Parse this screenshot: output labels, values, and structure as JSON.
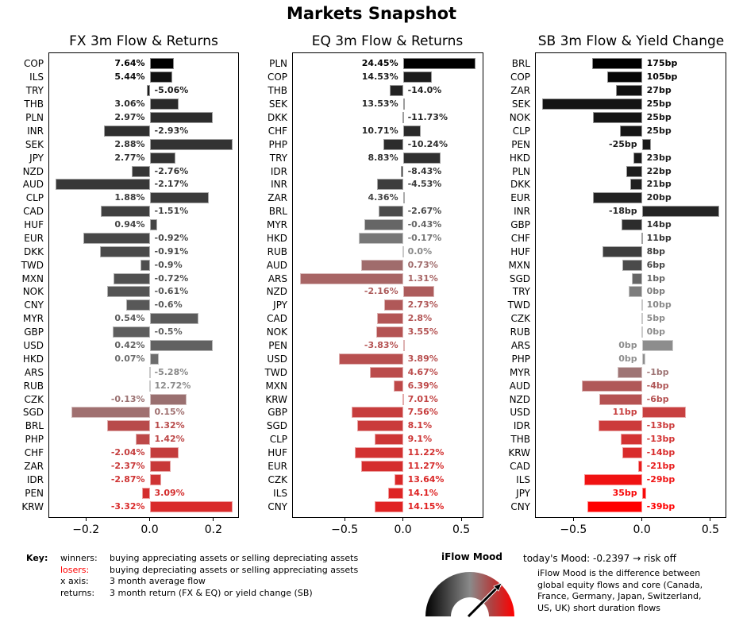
{
  "title": "Markets Snapshot",
  "chart_data": [
    {
      "type": "bar",
      "orientation": "horizontal",
      "title": "FX 3m Flow & Returns",
      "xlabel": "3 month average flow",
      "xlim": [
        -0.3175,
        0.28
      ],
      "xticks": [
        -0.2,
        0.0,
        0.2
      ],
      "xtick_labels": [
        "−0.2",
        "0.0",
        "0.2"
      ],
      "categories": [
        "COP",
        "ILS",
        "TRY",
        "THB",
        "PLN",
        "INR",
        "SEK",
        "JPY",
        "NZD",
        "AUD",
        "CLP",
        "CAD",
        "HUF",
        "EUR",
        "DKK",
        "TWD",
        "MXN",
        "NOK",
        "CNY",
        "MYR",
        "GBP",
        "USD",
        "HKD",
        "ARS",
        "RUB",
        "CZK",
        "SGD",
        "BRL",
        "PHP",
        "CHF",
        "ZAR",
        "IDR",
        "PEN",
        "KRW"
      ],
      "values": [
        0.075,
        0.07,
        -0.01,
        0.09,
        0.198,
        -0.143,
        0.26,
        0.08,
        -0.055,
        -0.295,
        0.185,
        -0.153,
        0.023,
        -0.208,
        -0.155,
        -0.028,
        -0.113,
        -0.133,
        -0.073,
        0.153,
        -0.115,
        0.198,
        0.028,
        -0.002,
        -0.002,
        0.115,
        -0.245,
        -0.133,
        -0.043,
        0.09,
        0.065,
        0.035,
        -0.023,
        0.26
      ],
      "labels": [
        "7.64%",
        "5.44%",
        "-5.06%",
        "3.06%",
        "2.97%",
        "-2.93%",
        "2.88%",
        "2.77%",
        "-2.76%",
        "-2.17%",
        "1.88%",
        "-1.51%",
        "0.94%",
        "-0.92%",
        "-0.91%",
        "-0.9%",
        "-0.72%",
        "-0.61%",
        "-0.6%",
        "0.54%",
        "-0.5%",
        "0.42%",
        "0.07%",
        "-5.28%",
        "12.72%",
        "-0.13%",
        "0.15%",
        "1.32%",
        "1.42%",
        "-2.04%",
        "-2.37%",
        "-2.87%",
        "3.09%",
        "-3.32%"
      ],
      "colors": [
        "#000000",
        "#111111",
        "#1a1a1a",
        "#2a2a2a",
        "#2d2d2d",
        "#303030",
        "#333333",
        "#333333",
        "#353535",
        "#383838",
        "#3b3b3b",
        "#404040",
        "#444444",
        "#474747",
        "#4a4a4a",
        "#4d4d4d",
        "#505050",
        "#555555",
        "#585858",
        "#5b5b5b",
        "#5e5e5e",
        "#616161",
        "#6d6d6d",
        "#888888",
        "#8c8c8c",
        "#9a7070",
        "#a07070",
        "#b84a4a",
        "#bd4848",
        "#c43c3c",
        "#c83838",
        "#cf3333",
        "#d42e2e",
        "#d92b2b"
      ]
    },
    {
      "type": "bar",
      "orientation": "horizontal",
      "title": "EQ 3m Flow & Returns",
      "xlabel": "3 month average flow",
      "xlim": [
        -0.95,
        0.69
      ],
      "xticks": [
        -0.5,
        0.0,
        0.5
      ],
      "xtick_labels": [
        "−0.5",
        "0.0",
        "0.5"
      ],
      "categories": [
        "PLN",
        "COP",
        "THB",
        "SEK",
        "DKK",
        "CHF",
        "PHP",
        "TRY",
        "IDR",
        "INR",
        "ZAR",
        "BRL",
        "MYR",
        "HKD",
        "RUB",
        "AUD",
        "ARS",
        "NZD",
        "JPY",
        "CAD",
        "NOK",
        "PEN",
        "USD",
        "TWD",
        "MXN",
        "KRW",
        "GBP",
        "SGD",
        "CLP",
        "HUF",
        "EUR",
        "CZK",
        "ILS",
        "CNY"
      ],
      "values": [
        0.625,
        0.245,
        -0.11,
        0.005,
        -0.007,
        0.15,
        -0.165,
        0.325,
        -0.02,
        -0.225,
        0.012,
        -0.205,
        -0.33,
        -0.38,
        -0.005,
        -0.36,
        -0.885,
        0.27,
        -0.16,
        -0.22,
        -0.23,
        0.012,
        -0.55,
        -0.28,
        -0.08,
        -0.004,
        -0.44,
        -0.395,
        -0.245,
        -0.415,
        -0.36,
        -0.07,
        -0.13,
        -0.24
      ],
      "labels": [
        "24.45%",
        "14.53%",
        "-14.0%",
        "13.53%",
        "-11.73%",
        "10.71%",
        "-10.24%",
        "8.83%",
        "-8.43%",
        "-4.53%",
        "4.36%",
        "-2.67%",
        "-0.43%",
        "-0.17%",
        "0.0%",
        "0.73%",
        "1.31%",
        "-2.16%",
        "2.73%",
        "2.8%",
        "3.55%",
        "-3.83%",
        "3.89%",
        "4.67%",
        "6.39%",
        "7.01%",
        "7.56%",
        "8.1%",
        "9.1%",
        "11.22%",
        "11.27%",
        "13.64%",
        "14.1%",
        "14.15%"
      ],
      "colors": [
        "#000000",
        "#1c1c1c",
        "#222222",
        "#262626",
        "#282828",
        "#2a2a2a",
        "#2c2c2c",
        "#303030",
        "#353535",
        "#3d3d3d",
        "#454545",
        "#4b4b4b",
        "#666666",
        "#777777",
        "#888888",
        "#a06c6c",
        "#a86565",
        "#ad5c5c",
        "#b05858",
        "#b35555",
        "#b45353",
        "#b55252",
        "#b85050",
        "#bb4c4c",
        "#be4848",
        "#c24444",
        "#c73d3d",
        "#ca3a3a",
        "#cd3636",
        "#d23131",
        "#d52d2d",
        "#da2828",
        "#de2424",
        "#e02222"
      ]
    },
    {
      "type": "bar",
      "orientation": "horizontal",
      "title": "SB 3m Flow & Yield Change",
      "xlabel": "3 month average flow",
      "xlim": [
        -0.78,
        0.616
      ],
      "xticks": [
        -0.5,
        0.0,
        0.5
      ],
      "xtick_labels": [
        "−0.5",
        "0.0",
        "0.5"
      ],
      "categories": [
        "BRL",
        "COP",
        "ZAR",
        "SEK",
        "NOK",
        "CLP",
        "PEN",
        "HKD",
        "PLN",
        "DKK",
        "EUR",
        "INR",
        "GBP",
        "CHF",
        "HUF",
        "MXN",
        "SGD",
        "TRY",
        "TWD",
        "CZK",
        "RUB",
        "ARS",
        "PHP",
        "MYR",
        "AUD",
        "NZD",
        "USD",
        "IDR",
        "THB",
        "KRW",
        "CAD",
        "ILS",
        "JPY",
        "CNY"
      ],
      "values": [
        -0.365,
        -0.25,
        -0.19,
        -0.725,
        -0.355,
        -0.163,
        0.064,
        -0.064,
        -0.116,
        -0.087,
        -0.355,
        0.565,
        -0.151,
        -0.006,
        -0.285,
        -0.145,
        -0.076,
        -0.099,
        -0.004,
        -0.004,
        -0.004,
        0.227,
        0.023,
        -0.18,
        -0.436,
        -0.308,
        0.32,
        -0.314,
        -0.157,
        -0.145,
        -0.029,
        -0.419,
        0.029,
        -0.395
      ],
      "labels": [
        "175bp",
        "105bp",
        "27bp",
        "25bp",
        "25bp",
        "25bp",
        "-25bp",
        "23bp",
        "22bp",
        "21bp",
        "20bp",
        "-18bp",
        "14bp",
        "11bp",
        "8bp",
        "6bp",
        "1bp",
        "0bp",
        "10bp",
        "5bp",
        "0bp",
        "0bp",
        "0bp",
        "-1bp",
        "-4bp",
        "-6bp",
        "11bp",
        "-13bp",
        "-13bp",
        "-14bp",
        "-21bp",
        "-29bp",
        "35bp",
        "-39bp"
      ],
      "colors": [
        "#000000",
        "#060606",
        "#111111",
        "#141414",
        "#151515",
        "#161616",
        "#181818",
        "#1b1b1b",
        "#1d1d1d",
        "#1f1f1f",
        "#222222",
        "#252525",
        "#2c2c2c",
        "#333333",
        "#3e3e3e",
        "#4a4a4a",
        "#666666",
        "#7d7d7d",
        "#888888",
        "#8b8b8b",
        "#8c8c8c",
        "#8d8d8d",
        "#8e8e8e",
        "#9f7575",
        "#b05858",
        "#b55252",
        "#c84040",
        "#cc3a3a",
        "#d33232",
        "#d92b2b",
        "#e81c1c",
        "#f01212",
        "#f80808",
        "#ff0000"
      ]
    }
  ],
  "legend": {
    "key_label": "Key:",
    "rows": [
      {
        "term": "winners:",
        "desc": "buying appreciating assets or selling depreciating assets",
        "term_color": "#000000"
      },
      {
        "term": "losers:",
        "desc": "buying depreciating assets or selling appreciating assets",
        "term_color": "#ff0000"
      },
      {
        "term": "x axis:",
        "desc": "3 month average flow",
        "term_color": "#000000"
      },
      {
        "term": "returns:",
        "desc": "3 month return (FX & EQ) or yield change (SB)",
        "term_color": "#000000"
      }
    ]
  },
  "gauge": {
    "title": "iFlow Mood",
    "value": -0.2397,
    "mood_text": "today's Mood:  -0.2397 → risk off",
    "description": [
      "iFlow Mood is the difference between",
      "global equity flows and core (Canada,",
      "France, Germany, Japan, Switzerland,",
      "US, UK) short duration flows"
    ]
  },
  "colors": {
    "winner": "#000000",
    "loser": "#ff0000",
    "neutral": "#888888"
  }
}
